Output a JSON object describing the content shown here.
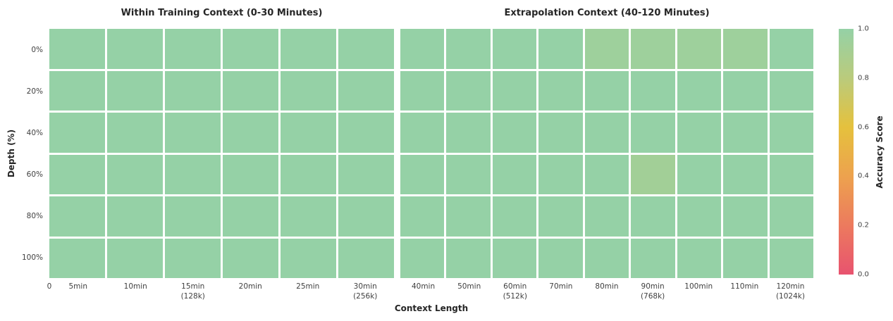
{
  "figure": {
    "background": "#ffffff",
    "x_axis_label": "Context Length",
    "y_axis_label": "Depth (%)"
  },
  "colorbar": {
    "label": "Accuracy Score",
    "tick_labels": [
      "1.0",
      "0.8",
      "0.6",
      "0.4",
      "0.2",
      "0.0"
    ],
    "stops": [
      {
        "value": 0.0,
        "color": "#e8536f"
      },
      {
        "value": 0.2,
        "color": "#ec7a5e"
      },
      {
        "value": 0.4,
        "color": "#eda24e"
      },
      {
        "value": 0.6,
        "color": "#e5c13d"
      },
      {
        "value": 0.8,
        "color": "#bacb7c"
      },
      {
        "value": 1.0,
        "color": "#95d1a6"
      }
    ]
  },
  "chart_data": {
    "type": "heatmap",
    "value_range": [
      0.0,
      1.0
    ],
    "gridlines": "white",
    "y_categories": [
      "0%",
      "20%",
      "40%",
      "60%",
      "80%",
      "100%"
    ],
    "panels": [
      {
        "title": "Within Training Context (0-30 Minutes)",
        "extra_x_tick": "0",
        "x_categories": [
          "5min",
          "10min",
          "15min\n(128k)",
          "20min",
          "25min",
          "30min\n(256k)"
        ],
        "values": [
          [
            1.0,
            1.0,
            1.0,
            1.0,
            1.0,
            1.0
          ],
          [
            1.0,
            1.0,
            1.0,
            1.0,
            1.0,
            1.0
          ],
          [
            1.0,
            1.0,
            1.0,
            1.0,
            1.0,
            1.0
          ],
          [
            1.0,
            1.0,
            1.0,
            1.0,
            1.0,
            1.0
          ],
          [
            1.0,
            1.0,
            1.0,
            1.0,
            1.0,
            1.0
          ],
          [
            1.0,
            1.0,
            1.0,
            1.0,
            1.0,
            1.0
          ]
        ]
      },
      {
        "title": "Extrapolation Context (40-120 Minutes)",
        "x_categories": [
          "40min",
          "50min",
          "60min\n(512k)",
          "70min",
          "80min",
          "90min\n(768k)",
          "100min",
          "110min",
          "120min\n(1024k)"
        ],
        "values": [
          [
            1.0,
            1.0,
            1.0,
            1.0,
            0.95,
            0.95,
            0.95,
            0.95,
            1.0
          ],
          [
            1.0,
            1.0,
            1.0,
            1.0,
            1.0,
            1.0,
            1.0,
            1.0,
            1.0
          ],
          [
            1.0,
            1.0,
            1.0,
            1.0,
            1.0,
            1.0,
            1.0,
            1.0,
            1.0
          ],
          [
            1.0,
            1.0,
            1.0,
            1.0,
            1.0,
            0.93,
            1.0,
            1.0,
            1.0
          ],
          [
            1.0,
            1.0,
            1.0,
            1.0,
            1.0,
            1.0,
            1.0,
            1.0,
            1.0
          ],
          [
            1.0,
            1.0,
            1.0,
            1.0,
            1.0,
            1.0,
            1.0,
            1.0,
            1.0
          ]
        ]
      }
    ]
  }
}
